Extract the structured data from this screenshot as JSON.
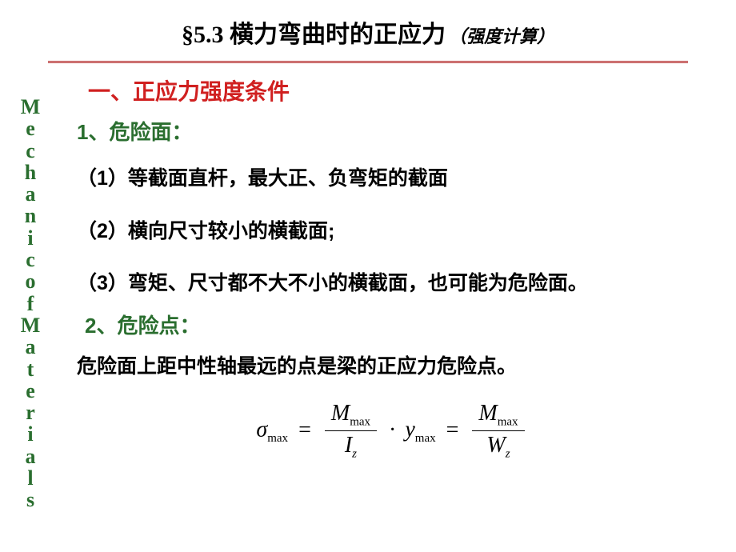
{
  "title": {
    "section": "§5.3",
    "main": " 横力弯曲时的正应力",
    "sub": "（强度计算）"
  },
  "vertical": [
    "M",
    "e",
    "c",
    "h",
    "a",
    "n",
    "i",
    "c",
    " ",
    "o",
    "f",
    " ",
    "M",
    "a",
    "t",
    "e",
    "r",
    "i",
    "a",
    "l",
    "s"
  ],
  "h1": "一、正应力强度条件",
  "s1": {
    "num": "1",
    "label": "、危险面："
  },
  "p1": {
    "num": "1",
    "text": "）等截面直杆，最大正、负弯矩的截面"
  },
  "p2": {
    "num": "2",
    "text": "）横向尺寸较小的横截面"
  },
  "p2tail": ";",
  "p3": {
    "num": "3",
    "text": "）弯矩、尺寸都不大不小的横截面，也可能为危险面。"
  },
  "s2": {
    "num": "2",
    "label": "、危险点："
  },
  "p4": "危险面上距中性轴最远的点是梁的正应力危险点。",
  "formula": {
    "sigma": "σ",
    "max": "max",
    "M": "M",
    "I": "I",
    "z": "z",
    "y": "y",
    "W": "W"
  },
  "colors": {
    "title": "#000000",
    "divider": "#b02020",
    "green": "#2a6e2f",
    "red": "#d02020",
    "body": "#000000",
    "bg": "#ffffff"
  }
}
